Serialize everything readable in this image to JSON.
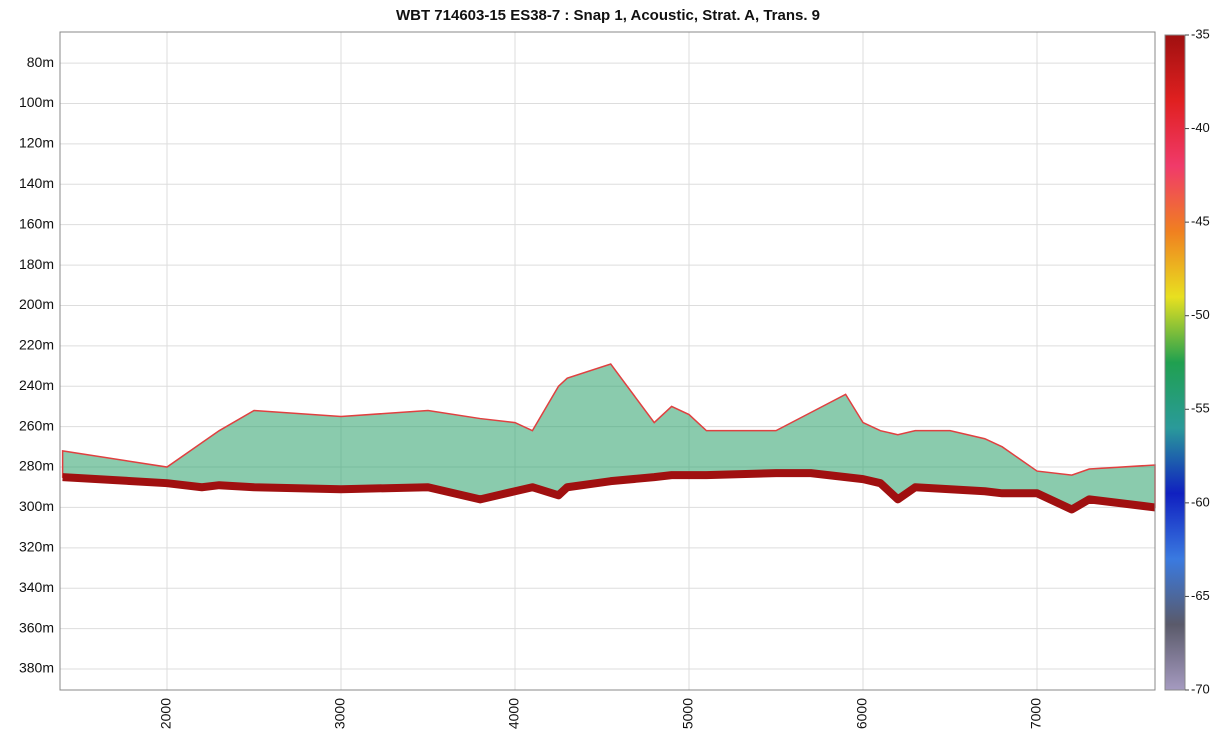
{
  "chart_data": {
    "type": "echogram",
    "title": "WBT 714603-15 ES38-7 :   Snap 1, Acoustic, Strat. A, Trans. 9",
    "xlim": [
      1385,
      7678
    ],
    "xticks": [
      2000,
      3000,
      4000,
      5000,
      6000,
      7000
    ],
    "ylim": [
      64.6,
      390.4
    ],
    "y_inverted": true,
    "yticks": [
      {
        "value": 80,
        "label": "80m"
      },
      {
        "value": 100,
        "label": "100m"
      },
      {
        "value": 120,
        "label": "120m"
      },
      {
        "value": 140,
        "label": "140m"
      },
      {
        "value": 160,
        "label": "160m"
      },
      {
        "value": 180,
        "label": "180m"
      },
      {
        "value": 200,
        "label": "200m"
      },
      {
        "value": 220,
        "label": "220m"
      },
      {
        "value": 240,
        "label": "240m"
      },
      {
        "value": 260,
        "label": "260m"
      },
      {
        "value": 280,
        "label": "280m"
      },
      {
        "value": 300,
        "label": "300m"
      },
      {
        "value": 320,
        "label": "320m"
      },
      {
        "value": 340,
        "label": "340m"
      },
      {
        "value": 360,
        "label": "360m"
      },
      {
        "value": 380,
        "label": "380m"
      }
    ],
    "grid": true,
    "x": [
      1400,
      2000,
      2200,
      2300,
      2500,
      3000,
      3500,
      3800,
      4000,
      4100,
      4250,
      4300,
      4550,
      4800,
      4900,
      5000,
      5100,
      5500,
      5700,
      5900,
      6000,
      6100,
      6200,
      6300,
      6500,
      6700,
      6800,
      7000,
      7200,
      7300,
      7678
    ],
    "series": [
      {
        "color": "#a01010",
        "values": [
          285,
          288,
          290,
          289,
          290,
          291,
          290,
          296,
          292,
          290,
          294,
          290,
          287,
          285,
          284,
          284,
          284,
          283,
          283,
          285,
          286,
          288,
          296,
          290,
          291,
          292,
          293,
          293,
          301,
          296,
          300
        ]
      },
      {
        "color": "#2aa06a",
        "values": [
          272,
          280,
          268,
          262,
          252,
          255,
          252,
          256,
          258,
          262,
          240,
          236,
          229,
          258,
          250,
          254,
          262,
          262,
          253,
          244,
          258,
          262,
          264,
          262,
          262,
          266,
          270,
          282,
          284,
          281,
          279
        ]
      }
    ],
    "colorbar": {
      "lim": [
        -70,
        -35
      ],
      "ticks": [
        -35,
        -40,
        -45,
        -50,
        -55,
        -60,
        -65,
        -70
      ],
      "colors": [
        "#a59ac0",
        "#5a5a6a",
        "#3a7ae0",
        "#1020c0",
        "#2a9a9a",
        "#20a050",
        "#e8e020",
        "#f08020",
        "#f03a6a",
        "#e02020",
        "#a01010"
      ]
    }
  }
}
